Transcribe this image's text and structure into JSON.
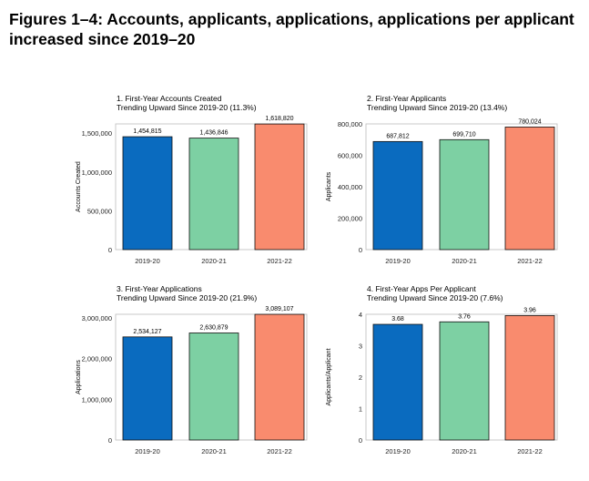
{
  "page": {
    "title": "Figures 1–4: Accounts, applicants, applications, applications per applicant increased since 2019–20"
  },
  "colors": {
    "bar_2019_20": "#0a6bbf",
    "bar_2020_21": "#7dd0a3",
    "bar_2021_22": "#f98b6e"
  },
  "chart_data": [
    {
      "type": "bar",
      "title": "1. First-Year Accounts Created",
      "subtitle": "Trending Upward Since 2019-20 (11.3%)",
      "categories": [
        "2019-20",
        "2020-21",
        "2021-22"
      ],
      "values": [
        1454815,
        1436846,
        1618820
      ],
      "value_labels": [
        "1,454,815",
        "1,436,846",
        "1,618,820"
      ],
      "ylabel": "Accounts Created",
      "ylim": [
        0,
        1620000
      ],
      "yticks": [
        0,
        500000,
        1000000,
        1500000
      ],
      "ytick_labels": [
        "0",
        "500,000",
        "1,000,000",
        "1,500,000"
      ]
    },
    {
      "type": "bar",
      "title": "2. First-Year Applicants",
      "subtitle": "Trending Upward Since 2019-20 (13.4%)",
      "categories": [
        "2019-20",
        "2020-21",
        "2021-22"
      ],
      "values": [
        687812,
        699710,
        780024
      ],
      "value_labels": [
        "687,812",
        "699,710",
        "780,024"
      ],
      "ylabel": "Applicants",
      "ylim": [
        0,
        800000
      ],
      "yticks": [
        0,
        200000,
        400000,
        600000,
        800000
      ],
      "ytick_labels": [
        "0",
        "200,000",
        "400,000",
        "600,000",
        "800,000"
      ]
    },
    {
      "type": "bar",
      "title": "3. First-Year Applications",
      "subtitle": "Trending Upward Since 2019-20 (21.9%)",
      "categories": [
        "2019-20",
        "2020-21",
        "2021-22"
      ],
      "values": [
        2534127,
        2630879,
        3089107
      ],
      "value_labels": [
        "2,534,127",
        "2,630,879",
        "3,089,107"
      ],
      "ylabel": "Applications",
      "ylim": [
        0,
        3090000
      ],
      "yticks": [
        0,
        1000000,
        2000000,
        3000000
      ],
      "ytick_labels": [
        "0",
        "1,000,000",
        "2,000,000",
        "3,000,000"
      ]
    },
    {
      "type": "bar",
      "title": "4. First-Year Apps Per Applicant",
      "subtitle": "Trending Upward Since 2019-20 (7.6%)",
      "categories": [
        "2019-20",
        "2020-21",
        "2021-22"
      ],
      "values": [
        3.68,
        3.76,
        3.96
      ],
      "value_labels": [
        "3.68",
        "3.76",
        "3.96"
      ],
      "ylabel": "Applicants/Applicant",
      "ylim": [
        0,
        4
      ],
      "yticks": [
        0,
        1,
        2,
        3,
        4
      ],
      "ytick_labels": [
        "0",
        "1",
        "2",
        "3",
        "4"
      ]
    }
  ]
}
